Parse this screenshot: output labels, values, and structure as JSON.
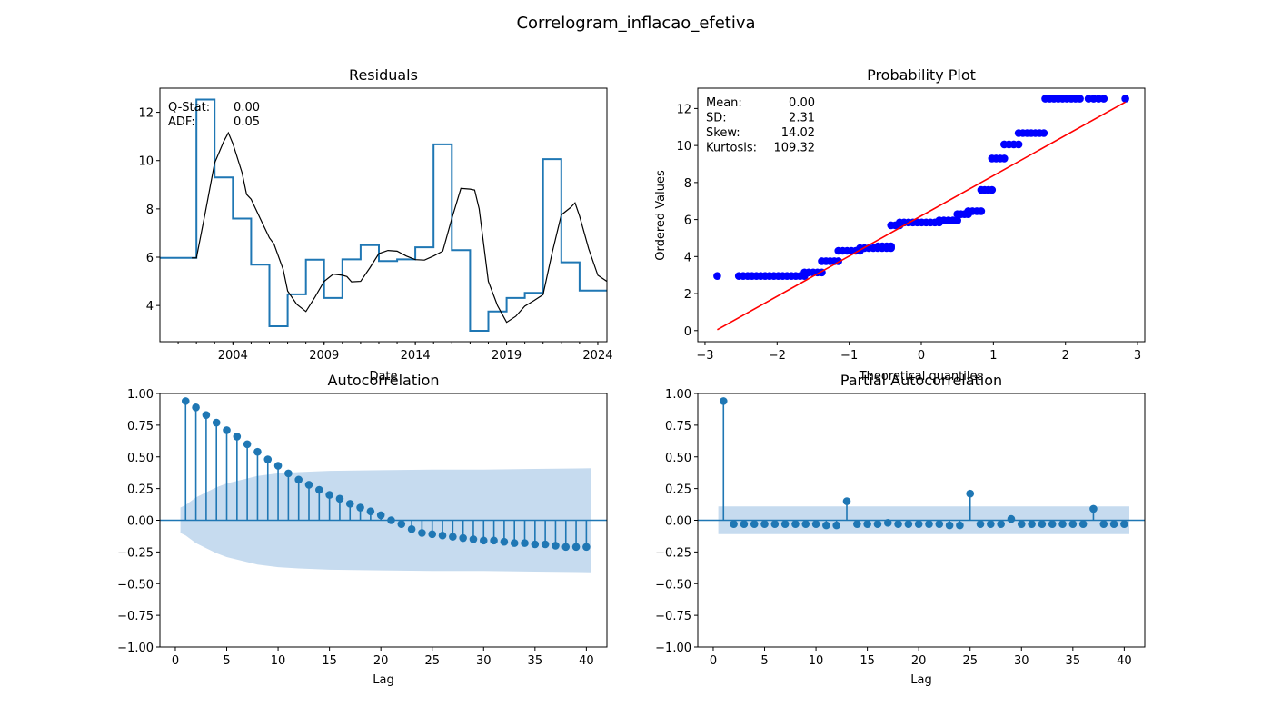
{
  "figure": {
    "title": "Correlogram_inflacao_efetiva"
  },
  "colors": {
    "series": "#1f77b4",
    "rolling_mean": "#000000",
    "qq_points": "#0000ff",
    "qq_line": "#ff0000",
    "confidence_band": "#c6dbef"
  },
  "chart_data": [
    {
      "id": "residuals",
      "type": "line",
      "title": "Residuals",
      "xlabel": "Date",
      "ylabel": "",
      "x_tick_labels": [
        "2004",
        "2009",
        "2014",
        "2019",
        "2024"
      ],
      "x_ticks": [
        2004,
        2009,
        2014,
        2019,
        2024
      ],
      "xlim": [
        2000.0,
        2024.5
      ],
      "ylim": [
        2.5,
        13.0
      ],
      "y_ticks": [
        4,
        6,
        8,
        10,
        12
      ],
      "grid": false,
      "annotations": [
        {
          "label": "Q-Stat:",
          "value": "0.00"
        },
        {
          "label": "ADF:",
          "value": "0.05"
        }
      ],
      "series": [
        {
          "style": "step",
          "points": [
            [
              2000.0,
              5.97
            ],
            [
              2002.0,
              5.97
            ],
            [
              2002.0,
              12.53
            ],
            [
              2003.0,
              12.53
            ],
            [
              2003.0,
              9.3
            ],
            [
              2004.0,
              9.3
            ],
            [
              2004.0,
              7.6
            ],
            [
              2005.0,
              7.6
            ],
            [
              2005.0,
              5.69
            ],
            [
              2006.0,
              5.69
            ],
            [
              2006.0,
              3.14
            ],
            [
              2007.0,
              3.14
            ],
            [
              2007.0,
              4.46
            ],
            [
              2008.0,
              4.46
            ],
            [
              2008.0,
              5.9
            ],
            [
              2009.0,
              5.9
            ],
            [
              2009.0,
              4.31
            ],
            [
              2010.0,
              4.31
            ],
            [
              2010.0,
              5.91
            ],
            [
              2011.0,
              5.91
            ],
            [
              2011.0,
              6.5
            ],
            [
              2012.0,
              6.5
            ],
            [
              2012.0,
              5.84
            ],
            [
              2013.0,
              5.84
            ],
            [
              2013.0,
              5.91
            ],
            [
              2014.0,
              5.91
            ],
            [
              2014.0,
              6.41
            ],
            [
              2015.0,
              6.41
            ],
            [
              2015.0,
              10.67
            ],
            [
              2016.0,
              10.67
            ],
            [
              2016.0,
              6.29
            ],
            [
              2017.0,
              6.29
            ],
            [
              2017.0,
              2.95
            ],
            [
              2018.0,
              2.95
            ],
            [
              2018.0,
              3.75
            ],
            [
              2019.0,
              3.75
            ],
            [
              2019.0,
              4.31
            ],
            [
              2020.0,
              4.31
            ],
            [
              2020.0,
              4.52
            ],
            [
              2021.0,
              4.52
            ],
            [
              2021.0,
              10.06
            ],
            [
              2022.0,
              10.06
            ],
            [
              2022.0,
              5.79
            ],
            [
              2023.0,
              5.79
            ],
            [
              2023.0,
              4.62
            ],
            [
              2024.5,
              4.62
            ]
          ]
        },
        {
          "style": "line",
          "points": [
            [
              2001.75,
              5.97
            ],
            [
              2002.0,
              5.97
            ],
            [
              2002.5,
              7.9
            ],
            [
              2003.0,
              9.9
            ],
            [
              2003.5,
              10.8
            ],
            [
              2003.75,
              11.15
            ],
            [
              2004.0,
              10.7
            ],
            [
              2004.5,
              9.5
            ],
            [
              2004.75,
              8.6
            ],
            [
              2005.0,
              8.4
            ],
            [
              2005.5,
              7.6
            ],
            [
              2006.0,
              6.8
            ],
            [
              2006.25,
              6.55
            ],
            [
              2006.75,
              5.5
            ],
            [
              2007.0,
              4.6
            ],
            [
              2007.5,
              4.05
            ],
            [
              2008.0,
              3.75
            ],
            [
              2008.5,
              4.35
            ],
            [
              2009.0,
              5.0
            ],
            [
              2009.5,
              5.3
            ],
            [
              2010.0,
              5.25
            ],
            [
              2010.25,
              5.2
            ],
            [
              2010.5,
              4.98
            ],
            [
              2011.0,
              5.0
            ],
            [
              2011.5,
              5.55
            ],
            [
              2012.0,
              6.15
            ],
            [
              2012.5,
              6.28
            ],
            [
              2013.0,
              6.25
            ],
            [
              2013.5,
              6.05
            ],
            [
              2014.0,
              5.9
            ],
            [
              2014.5,
              5.88
            ],
            [
              2015.0,
              6.05
            ],
            [
              2015.5,
              6.25
            ],
            [
              2016.0,
              7.6
            ],
            [
              2016.5,
              8.85
            ],
            [
              2017.0,
              8.82
            ],
            [
              2017.25,
              8.78
            ],
            [
              2017.5,
              8.0
            ],
            [
              2018.0,
              5.0
            ],
            [
              2018.5,
              4.0
            ],
            [
              2019.0,
              3.3
            ],
            [
              2019.5,
              3.55
            ],
            [
              2020.0,
              3.97
            ],
            [
              2020.5,
              4.2
            ],
            [
              2021.0,
              4.45
            ],
            [
              2021.5,
              6.2
            ],
            [
              2022.0,
              7.75
            ],
            [
              2022.5,
              8.05
            ],
            [
              2022.75,
              8.25
            ],
            [
              2023.0,
              7.7
            ],
            [
              2023.5,
              6.35
            ],
            [
              2024.0,
              5.25
            ],
            [
              2024.5,
              5.0
            ]
          ]
        }
      ]
    },
    {
      "id": "probability_plot",
      "type": "scatter",
      "title": "Probability Plot",
      "xlabel": "Theoretical quantiles",
      "ylabel": "Ordered Values",
      "xlim": [
        -3.1,
        3.1
      ],
      "ylim": [
        -0.6,
        13.1
      ],
      "x_ticks": [
        -3,
        -2,
        -1,
        0,
        1,
        2,
        3
      ],
      "x_tick_labels": [
        "−3",
        "−2",
        "−1",
        "0",
        "1",
        "2",
        "3"
      ],
      "y_ticks": [
        0,
        2,
        4,
        6,
        8,
        10,
        12
      ],
      "grid": false,
      "stats": [
        {
          "label": "Mean:",
          "value": "0.00"
        },
        {
          "label": "SD:",
          "value": "2.31"
        },
        {
          "label": "Skew:",
          "value": "14.02"
        },
        {
          "label": "Kurtosis:",
          "value": "109.32"
        }
      ],
      "fit_line": [
        [
          -2.83,
          0.05
        ],
        [
          2.83,
          12.35
        ]
      ],
      "groups": [
        {
          "x": [
            -2.83,
            -2.83
          ],
          "y": 2.95
        },
        {
          "x": [
            -2.53,
            -1.62
          ],
          "y": 2.95
        },
        {
          "x": [
            -1.62,
            -1.38
          ],
          "y": 3.14
        },
        {
          "x": [
            -1.38,
            -1.15
          ],
          "y": 3.75
        },
        {
          "x": [
            -1.15,
            -0.85
          ],
          "y": 4.31
        },
        {
          "x": [
            -0.85,
            -0.42
          ],
          "y": 4.46
        },
        {
          "x": [
            -0.6,
            -0.42
          ],
          "y": 4.55
        },
        {
          "x": [
            -0.42,
            -0.3
          ],
          "y": 5.69
        },
        {
          "x": [
            -0.3,
            0.25
          ],
          "y": 5.84
        },
        {
          "x": [
            0.25,
            0.5
          ],
          "y": 5.95
        },
        {
          "x": [
            0.5,
            0.65
          ],
          "y": 6.29
        },
        {
          "x": [
            0.65,
            0.83
          ],
          "y": 6.45
        },
        {
          "x": [
            0.83,
            0.98
          ],
          "y": 7.6
        },
        {
          "x": [
            0.98,
            1.15
          ],
          "y": 9.3
        },
        {
          "x": [
            1.15,
            1.35
          ],
          "y": 10.06
        },
        {
          "x": [
            1.35,
            1.7
          ],
          "y": 10.67
        },
        {
          "x": [
            1.72,
            2.2
          ],
          "y": 12.53
        },
        {
          "x": [
            2.32,
            2.53
          ],
          "y": 12.53
        },
        {
          "x": [
            2.83,
            2.83
          ],
          "y": 12.53
        }
      ]
    },
    {
      "id": "acf",
      "type": "stem",
      "title": "Autocorrelation",
      "xlabel": "Lag",
      "ylabel": "",
      "xlim": [
        -1.5,
        42.0
      ],
      "ylim": [
        -1.0,
        1.0
      ],
      "x_ticks": [
        0,
        5,
        10,
        15,
        20,
        25,
        30,
        35,
        40
      ],
      "y_ticks": [
        1.0,
        0.75,
        0.5,
        0.25,
        0.0,
        -0.25,
        -0.5,
        -0.75,
        -1.0
      ],
      "y_tick_labels": [
        "1.00",
        "0.75",
        "0.50",
        "0.25",
        "0.00",
        "−0.25",
        "−0.50",
        "−0.75",
        "−1.00"
      ],
      "grid": false,
      "lags": [
        1,
        2,
        3,
        4,
        5,
        6,
        7,
        8,
        9,
        10,
        11,
        12,
        13,
        14,
        15,
        16,
        17,
        18,
        19,
        20,
        21,
        22,
        23,
        24,
        25,
        26,
        27,
        28,
        29,
        30,
        31,
        32,
        33,
        34,
        35,
        36,
        37,
        38,
        39,
        40
      ],
      "values": [
        0.94,
        0.89,
        0.83,
        0.77,
        0.71,
        0.66,
        0.6,
        0.54,
        0.48,
        0.43,
        0.37,
        0.32,
        0.28,
        0.24,
        0.2,
        0.17,
        0.13,
        0.1,
        0.07,
        0.04,
        0.0,
        -0.03,
        -0.07,
        -0.1,
        -0.11,
        -0.12,
        -0.13,
        -0.14,
        -0.15,
        -0.16,
        -0.16,
        -0.17,
        -0.18,
        -0.18,
        -0.19,
        -0.19,
        -0.2,
        -0.21,
        -0.21,
        -0.21
      ],
      "confidence_band": {
        "x": [
          0.5,
          1,
          2,
          3,
          4,
          5,
          6,
          7,
          8,
          10,
          12,
          15,
          20,
          25,
          30,
          35,
          40.5
        ],
        "upper": [
          0.1,
          0.12,
          0.18,
          0.22,
          0.26,
          0.29,
          0.31,
          0.33,
          0.35,
          0.37,
          0.38,
          0.39,
          0.395,
          0.4,
          0.4,
          0.405,
          0.41
        ],
        "lower": [
          -0.1,
          -0.12,
          -0.18,
          -0.22,
          -0.26,
          -0.29,
          -0.31,
          -0.33,
          -0.35,
          -0.37,
          -0.38,
          -0.39,
          -0.395,
          -0.4,
          -0.4,
          -0.405,
          -0.41
        ]
      }
    },
    {
      "id": "pacf",
      "type": "stem",
      "title": "Partial Autocorrelation",
      "xlabel": "Lag",
      "ylabel": "",
      "xlim": [
        -1.5,
        42.0
      ],
      "ylim": [
        -1.0,
        1.0
      ],
      "x_ticks": [
        0,
        5,
        10,
        15,
        20,
        25,
        30,
        35,
        40
      ],
      "y_ticks": [
        1.0,
        0.75,
        0.5,
        0.25,
        0.0,
        -0.25,
        -0.5,
        -0.75,
        -1.0
      ],
      "y_tick_labels": [
        "1.00",
        "0.75",
        "0.50",
        "0.25",
        "0.00",
        "−0.25",
        "−0.50",
        "−0.75",
        "−1.00"
      ],
      "grid": false,
      "lags": [
        1,
        2,
        3,
        4,
        5,
        6,
        7,
        8,
        9,
        10,
        11,
        12,
        13,
        14,
        15,
        16,
        17,
        18,
        19,
        20,
        21,
        22,
        23,
        24,
        25,
        26,
        27,
        28,
        29,
        30,
        31,
        32,
        33,
        34,
        35,
        36,
        37,
        38,
        39,
        40
      ],
      "values": [
        0.94,
        -0.03,
        -0.03,
        -0.03,
        -0.03,
        -0.03,
        -0.03,
        -0.03,
        -0.03,
        -0.03,
        -0.04,
        -0.04,
        0.15,
        -0.03,
        -0.03,
        -0.03,
        -0.02,
        -0.03,
        -0.03,
        -0.03,
        -0.03,
        -0.03,
        -0.04,
        -0.04,
        0.21,
        -0.03,
        -0.03,
        -0.03,
        0.01,
        -0.03,
        -0.03,
        -0.03,
        -0.03,
        -0.03,
        -0.03,
        -0.03,
        0.09,
        -0.03,
        -0.03,
        -0.03
      ],
      "confidence_band": {
        "x": [
          0.5,
          40.5
        ],
        "upper": [
          0.11,
          0.11
        ],
        "lower": [
          -0.11,
          -0.11
        ]
      }
    }
  ]
}
